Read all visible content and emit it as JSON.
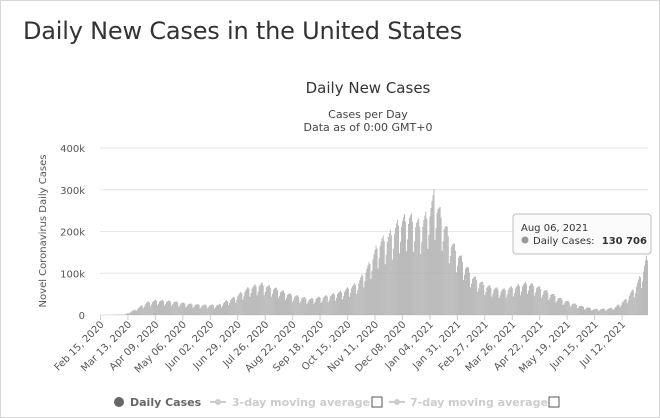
{
  "page": {
    "title": "Daily New Cases in the United States"
  },
  "colors": {
    "bars": "#a9a9a9",
    "legend_active": "#666666",
    "legend_inactive": "#cccccc"
  },
  "chart_data": {
    "type": "bar",
    "title": "Daily New Cases",
    "subtitle_line1": "Cases per Day",
    "subtitle_line2": "Data as of 0:00 GMT+0",
    "ylabel": "Novel Coronavirus Daily Cases",
    "xlabel": "",
    "ylim": [
      0,
      400000
    ],
    "y_ticks": [
      "0",
      "100k",
      "200k",
      "300k",
      "400k"
    ],
    "x_tick_labels": [
      "Feb 15, 2020",
      "Mar 13, 2020",
      "Apr 09, 2020",
      "May 06, 2020",
      "Jun 02, 2020",
      "Jun 29, 2020",
      "Jul 26, 2020",
      "Aug 22, 2020",
      "Sep 18, 2020",
      "Oct 15, 2020",
      "Nov 11, 2020",
      "Dec 08, 2020",
      "Jan 04, 2021",
      "Jan 31, 2021",
      "Feb 27, 2021",
      "Mar 26, 2021",
      "Apr 22, 2021",
      "May 19, 2021",
      "Jun 15, 2021",
      "Jul 12, 2021"
    ],
    "x_range": [
      "2020-02-15",
      "2021-08-06"
    ],
    "grid": true,
    "series": [
      {
        "name": "Daily Cases",
        "trend_points": [
          [
            "2020-02-15",
            0
          ],
          [
            "2020-03-10",
            1000
          ],
          [
            "2020-03-20",
            12000
          ],
          [
            "2020-04-01",
            28000
          ],
          [
            "2020-04-10",
            32000
          ],
          [
            "2020-04-25",
            30000
          ],
          [
            "2020-05-10",
            25000
          ],
          [
            "2020-05-25",
            22000
          ],
          [
            "2020-06-10",
            22000
          ],
          [
            "2020-06-25",
            38000
          ],
          [
            "2020-07-10",
            60000
          ],
          [
            "2020-07-22",
            68000
          ],
          [
            "2020-08-05",
            58000
          ],
          [
            "2020-08-20",
            45000
          ],
          [
            "2020-09-08",
            35000
          ],
          [
            "2020-09-25",
            42000
          ],
          [
            "2020-10-10",
            52000
          ],
          [
            "2020-10-25",
            70000
          ],
          [
            "2020-11-05",
            110000
          ],
          [
            "2020-11-15",
            160000
          ],
          [
            "2020-11-25",
            175000
          ],
          [
            "2020-12-05",
            205000
          ],
          [
            "2020-12-15",
            215000
          ],
          [
            "2020-12-25",
            200000
          ],
          [
            "2021-01-02",
            220000
          ],
          [
            "2021-01-08",
            255000
          ],
          [
            "2021-01-15",
            220000
          ],
          [
            "2021-01-25",
            160000
          ],
          [
            "2021-02-05",
            120000
          ],
          [
            "2021-02-15",
            85000
          ],
          [
            "2021-02-28",
            65000
          ],
          [
            "2021-03-15",
            55000
          ],
          [
            "2021-03-28",
            62000
          ],
          [
            "2021-04-10",
            70000
          ],
          [
            "2021-04-20",
            62000
          ],
          [
            "2021-05-01",
            50000
          ],
          [
            "2021-05-15",
            33000
          ],
          [
            "2021-06-01",
            20000
          ],
          [
            "2021-06-15",
            13000
          ],
          [
            "2021-06-28",
            14000
          ],
          [
            "2021-07-05",
            17000
          ],
          [
            "2021-07-15",
            33000
          ],
          [
            "2021-07-25",
            62000
          ],
          [
            "2021-08-01",
            95000
          ],
          [
            "2021-08-06",
            130706
          ]
        ],
        "peak": [
          "2021-01-08",
          302000
        ]
      },
      {
        "name": "3-day moving average"
      },
      {
        "name": "7-day moving average"
      }
    ],
    "legend": {
      "placement": "bottom",
      "items": [
        "Daily Cases",
        "3-day moving average",
        "7-day moving average"
      ]
    },
    "tooltip": {
      "date": "Aug 06, 2021",
      "series_label": "Daily Cases:",
      "value": "130 706"
    }
  }
}
